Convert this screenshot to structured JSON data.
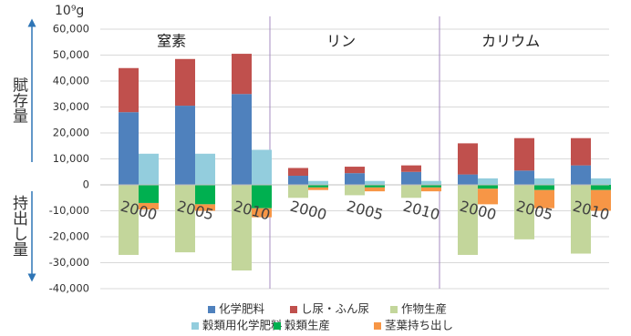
{
  "chart_data": {
    "type": "bar",
    "stacked": true,
    "unit_label": "10⁹g",
    "side_labels": [
      "賦存量",
      "持出し量"
    ],
    "groups": [
      "窒素",
      "リン",
      "カリウム"
    ],
    "categories": [
      "2000",
      "2005",
      "2010",
      "2000",
      "2005",
      "2010",
      "2000",
      "2005",
      "2010"
    ],
    "series": [
      {
        "name": "化学肥料",
        "color": "#4f81bd",
        "stack": 0,
        "values": [
          28000,
          30500,
          35000,
          3500,
          4500,
          5000,
          4000,
          5500,
          7500
        ]
      },
      {
        "name": "し尿・ふん尿",
        "color": "#c0504d",
        "stack": 0,
        "values": [
          17000,
          18000,
          15500,
          3000,
          2500,
          2500,
          12000,
          12500,
          10500
        ]
      },
      {
        "name": "作物生産",
        "color": "#c3d69b",
        "stack": 0,
        "values": [
          -27000,
          -26000,
          -33000,
          -5000,
          -4000,
          -5000,
          -27000,
          -21000,
          -26500
        ]
      },
      {
        "name": "穀類用化学肥料",
        "color": "#93cddd",
        "stack": 1,
        "values": [
          12000,
          12000,
          13500,
          1500,
          1500,
          1500,
          2500,
          2500,
          2500
        ]
      },
      {
        "name": "穀類生産",
        "color": "#00b050",
        "stack": 1,
        "values": [
          -7000,
          -7500,
          -9000,
          -1000,
          -1000,
          -1000,
          -1500,
          -2000,
          -2000
        ]
      },
      {
        "name": "茎葉持ち出し",
        "color": "#f79646",
        "stack": 1,
        "values": [
          -2500,
          -2500,
          -3500,
          -1000,
          -1500,
          -1500,
          -6000,
          -7000,
          -8000
        ]
      }
    ],
    "ylim": [
      -40000,
      60000
    ],
    "yticks": [
      {
        "value": -40000,
        "label": "-40,000"
      },
      {
        "value": -30000,
        "label": "-30,000"
      },
      {
        "value": -20000,
        "label": "-20,000"
      },
      {
        "value": -10000,
        "label": "-10,000"
      },
      0,
      {
        "value": 10000,
        "label": "10,000"
      },
      {
        "value": 20000,
        "label": "20,000"
      },
      {
        "value": 30000,
        "label": "30,000"
      },
      {
        "value": 40000,
        "label": "40,000"
      },
      {
        "value": 50000,
        "label": "50,000"
      },
      {
        "value": 60000,
        "label": "60,000"
      }
    ],
    "grid": true
  }
}
